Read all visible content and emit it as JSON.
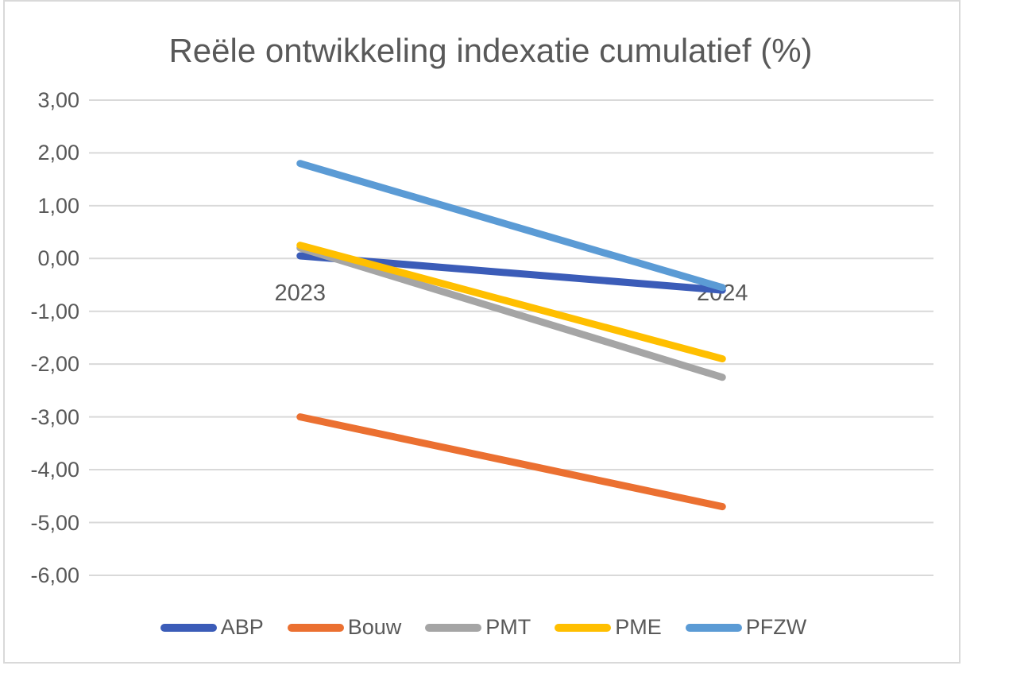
{
  "chart_data": {
    "type": "line",
    "title": "Reële ontwikkeling indexatie cumulatief (%)",
    "categories": [
      "2023",
      "2024"
    ],
    "series": [
      {
        "name": "ABP",
        "color": "#3b5cb8",
        "values": [
          0.05,
          -0.6
        ]
      },
      {
        "name": "Bouw",
        "color": "#eb7031",
        "values": [
          -3.0,
          -4.7
        ]
      },
      {
        "name": "PMT",
        "color": "#a5a5a5",
        "values": [
          0.2,
          -2.25
        ]
      },
      {
        "name": "PME",
        "color": "#ffbf00",
        "values": [
          0.25,
          -1.9
        ]
      },
      {
        "name": "PFZW",
        "color": "#5b9bd5",
        "values": [
          1.8,
          -0.55
        ]
      }
    ],
    "yticks": [
      {
        "label": "3,00",
        "value": 3
      },
      {
        "label": "2,00",
        "value": 2
      },
      {
        "label": "1,00",
        "value": 1
      },
      {
        "label": "0,00",
        "value": 0
      },
      {
        "label": "-1,00",
        "value": -1
      },
      {
        "label": "-2,00",
        "value": -2
      },
      {
        "label": "-3,00",
        "value": -3
      },
      {
        "label": "-4,00",
        "value": -4
      },
      {
        "label": "-5,00",
        "value": -5
      },
      {
        "label": "-6,00",
        "value": -6
      }
    ],
    "ylim": [
      -6,
      3
    ],
    "grid": true,
    "legend_position": "bottom",
    "number_format": "decimal-comma",
    "grid_color": "#d9d9d9",
    "frame_color": "#d9d9d9",
    "text_color": "#595959"
  }
}
